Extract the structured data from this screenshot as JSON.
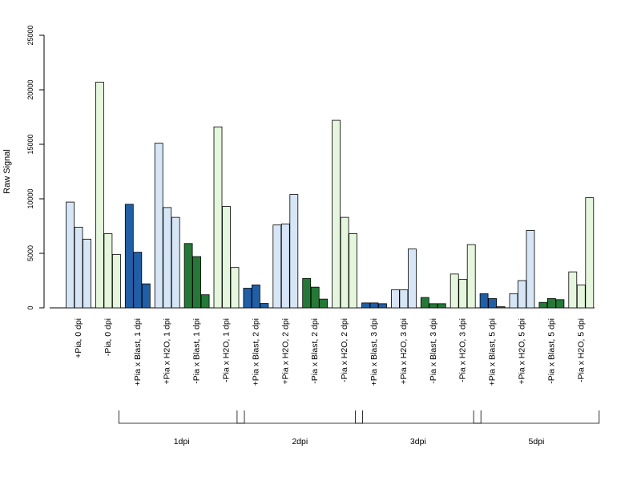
{
  "chart_data": {
    "type": "bar",
    "ylabel": "Raw Signal",
    "xlabel": "",
    "ylim": [
      0,
      25000
    ],
    "yticks": [
      0,
      5000,
      10000,
      15000,
      20000,
      25000
    ],
    "grid": false,
    "categories": [
      "+Pia, 0 dpi",
      "-Pia, 0 dpi",
      "+Pia x Blast, 1 dpi",
      "+Pia x H2O, 1 dpi",
      "-Pia x Blast, 1 dpi",
      "-Pia x H2O, 1 dpi",
      "+Pia x Blast, 2 dpi",
      "+Pia x H2O, 2 dpi",
      "-Pia x Blast, 2 dpi",
      "-Pia x H2O, 2 dpi",
      "+Pia x Blast, 3 dpi",
      "+Pia x H2O, 3 dpi",
      "-Pia x Blast, 3 dpi",
      "-Pia x H2O, 3 dpi",
      "+Pia x Blast, 5 dpi",
      "+Pia x H2O, 5 dpi",
      "-Pia x Blast, 5 dpi",
      "-Pia x H2O, 5 dpi"
    ],
    "values": [
      [
        9700,
        7400,
        6300
      ],
      [
        20700,
        6800,
        4900
      ],
      [
        9500,
        5100,
        2200
      ],
      [
        15100,
        9200,
        8300
      ],
      [
        5900,
        4700,
        1200
      ],
      [
        16600,
        9300,
        3700
      ],
      [
        1800,
        2100,
        400
      ],
      [
        7600,
        7700,
        10400
      ],
      [
        2700,
        1900,
        800
      ],
      [
        17200,
        8300,
        6800
      ],
      [
        450,
        450,
        380
      ],
      [
        1650,
        1650,
        5400
      ],
      [
        950,
        380,
        380
      ],
      [
        3100,
        2600,
        5800
      ],
      [
        1300,
        850,
        100
      ],
      [
        1300,
        2500,
        7100
      ],
      [
        500,
        850,
        750
      ],
      [
        3300,
        2100,
        10100
      ]
    ],
    "bar_colors": [
      "#d6e6f6",
      "#e4f6dc",
      "#1f5fa8",
      "#d6e6f6",
      "#237a36",
      "#e4f6dc",
      "#1f5fa8",
      "#d6e6f6",
      "#237a36",
      "#e4f6dc",
      "#1f5fa8",
      "#d6e6f6",
      "#237a36",
      "#e4f6dc",
      "#1f5fa8",
      "#d6e6f6",
      "#237a36",
      "#e4f6dc"
    ],
    "groups": [
      {
        "label": "1dpi",
        "first": 2,
        "last": 5
      },
      {
        "label": "2dpi",
        "first": 6,
        "last": 9
      },
      {
        "label": "3dpi",
        "first": 10,
        "last": 13
      },
      {
        "label": "5dpi",
        "first": 14,
        "last": 17
      }
    ]
  }
}
